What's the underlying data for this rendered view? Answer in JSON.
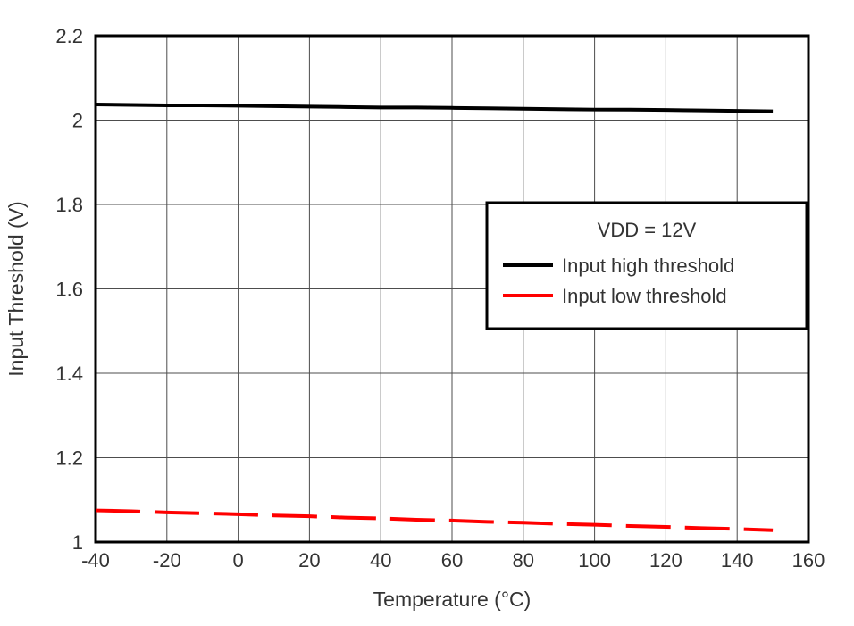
{
  "chart_data": {
    "type": "line",
    "title": "",
    "xlabel": "Temperature (°C)",
    "ylabel": "Input Threshold (V)",
    "xlim": [
      -40,
      160
    ],
    "ylim": [
      1,
      2.2
    ],
    "xticks": [
      -40,
      -20,
      0,
      20,
      40,
      60,
      80,
      100,
      120,
      140,
      160
    ],
    "xtick_labels": [
      "-40",
      "-20",
      "0",
      "20",
      "40",
      "60",
      "80",
      "100",
      "120",
      "140",
      "160"
    ],
    "yticks": [
      1,
      1.2,
      1.4,
      1.6,
      1.8,
      2,
      2.2
    ],
    "ytick_labels": [
      "1",
      "1.2",
      "1.4",
      "1.6",
      "1.8",
      "2",
      "2.2"
    ],
    "grid": true,
    "legend": {
      "title": "VDD = 12V",
      "position": "right-center"
    },
    "series": [
      {
        "name": "Input high threshold",
        "color": "#000000",
        "style": "solid",
        "x": [
          -40,
          -30,
          -20,
          -10,
          0,
          10,
          20,
          30,
          40,
          50,
          60,
          70,
          80,
          90,
          100,
          110,
          120,
          130,
          140,
          150
        ],
        "y": [
          2.037,
          2.036,
          2.035,
          2.035,
          2.034,
          2.033,
          2.032,
          2.031,
          2.03,
          2.03,
          2.029,
          2.028,
          2.027,
          2.026,
          2.025,
          2.025,
          2.024,
          2.023,
          2.022,
          2.021
        ]
      },
      {
        "name": "Input low threshold",
        "color": "#ff0000",
        "style": "dashed",
        "x": [
          -40,
          -30,
          -20,
          -10,
          0,
          10,
          20,
          30,
          40,
          50,
          60,
          70,
          80,
          90,
          100,
          110,
          120,
          130,
          140,
          150
        ],
        "y": [
          1.075,
          1.073,
          1.07,
          1.068,
          1.066,
          1.063,
          1.061,
          1.058,
          1.056,
          1.053,
          1.051,
          1.048,
          1.046,
          1.043,
          1.041,
          1.038,
          1.036,
          1.033,
          1.031,
          1.028
        ]
      }
    ]
  },
  "colors": {
    "grid": "#4d4d4d",
    "border": "#000000",
    "text": "#333333",
    "background": "#ffffff"
  }
}
